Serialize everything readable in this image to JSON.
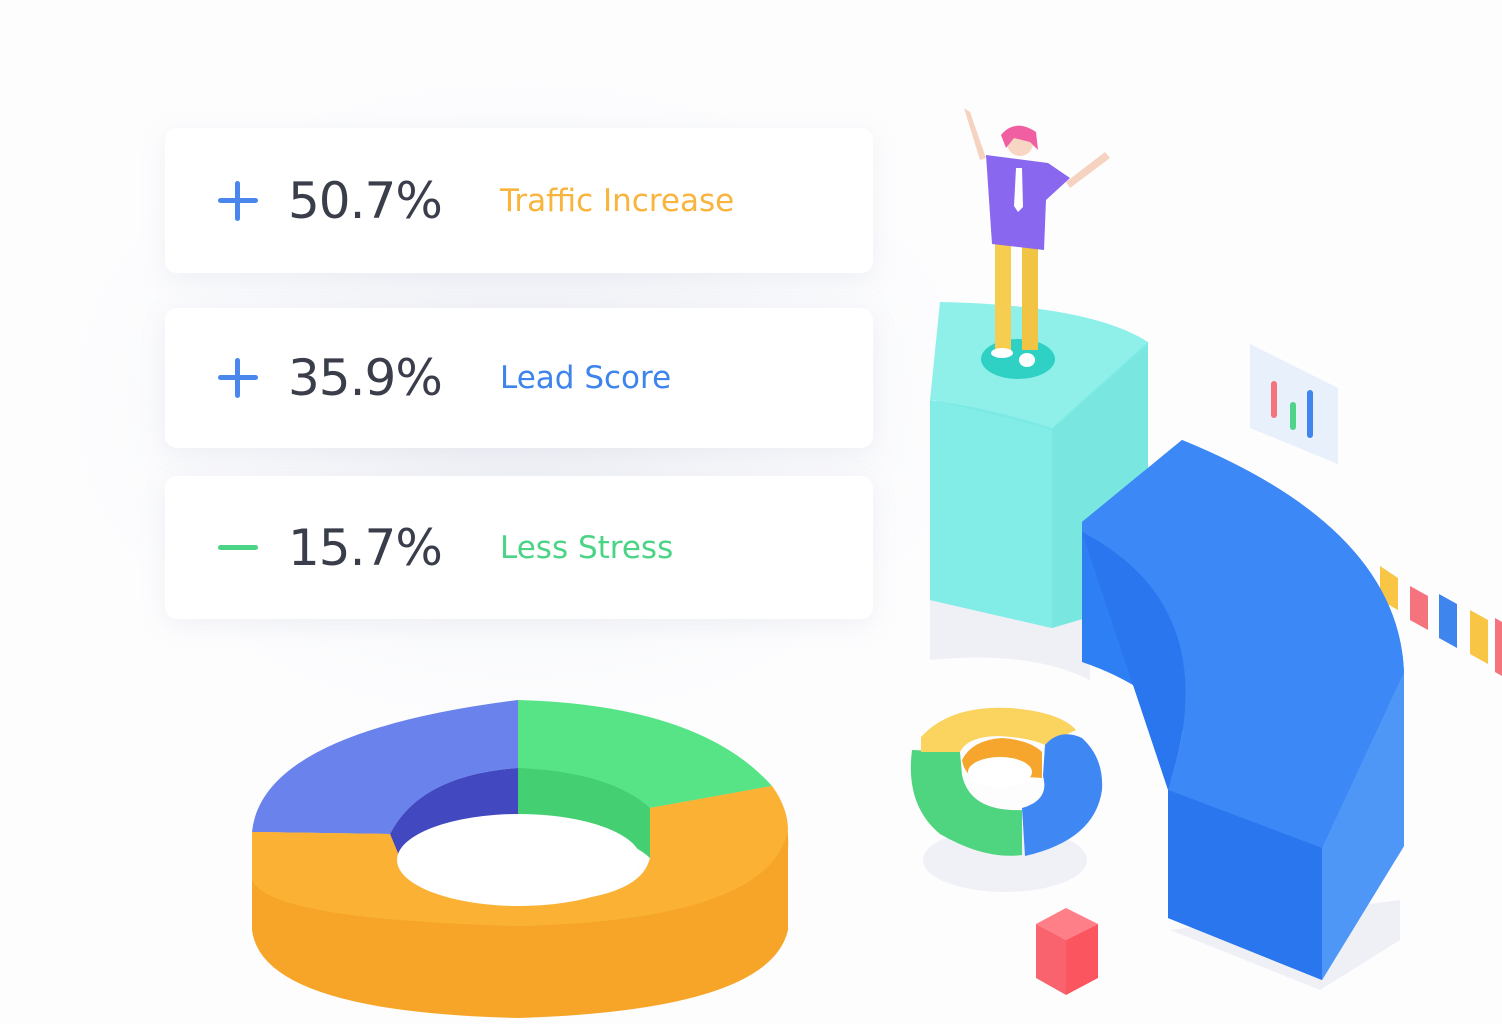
{
  "stats": [
    {
      "sign": "plus",
      "value": "50.7%",
      "label": "Traffic Increase",
      "color": "#f8b43c"
    },
    {
      "sign": "plus",
      "value": "35.9%",
      "label": "Lead Score",
      "color": "#3d84ec"
    },
    {
      "sign": "minus",
      "value": "15.7%",
      "label": "Less Stress",
      "color": "#4cd486"
    }
  ],
  "colors": {
    "plus_sign": "#4a86ec",
    "minus_sign": "#4cd486",
    "value_text": "#3a3d4a"
  },
  "illustration": {
    "icons": [
      "donut-chart-icon",
      "pedestal-icon",
      "person-icon",
      "quarter-ring-icon",
      "small-donut-icon",
      "bar-chart-card-icon",
      "cube-icon",
      "color-tiles-icon"
    ]
  }
}
